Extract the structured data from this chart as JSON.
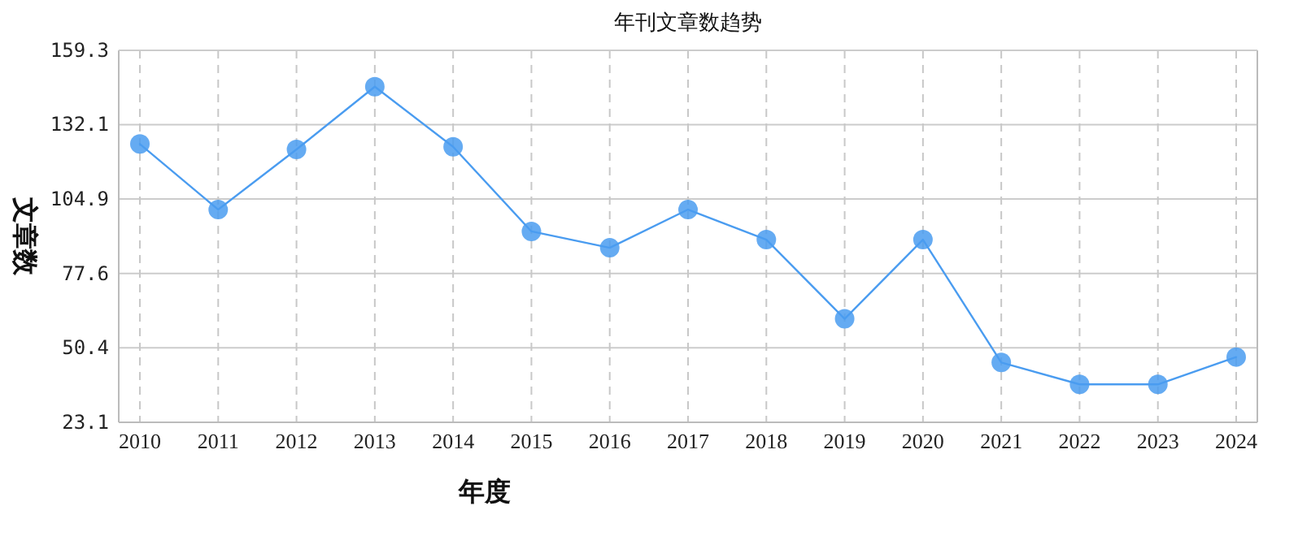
{
  "chart_data": {
    "type": "line",
    "title": "年刊文章数趋势",
    "xlabel": "年度",
    "ylabel": "文章数",
    "categories": [
      "2010",
      "2011",
      "2012",
      "2013",
      "2014",
      "2015",
      "2016",
      "2017",
      "2018",
      "2019",
      "2020",
      "2021",
      "2022",
      "2023",
      "2024"
    ],
    "series": [
      {
        "color": "#4a9cf0",
        "values": [
          125,
          101,
          123,
          146,
          124,
          93,
          87,
          101,
          90,
          61,
          90,
          45,
          37,
          37,
          47
        ]
      }
    ],
    "ylim": [
      23.1,
      159.3
    ],
    "yticks": [
      23.1,
      50.4,
      77.6,
      104.9,
      132.1,
      159.3
    ],
    "grid": true,
    "marker": "circle",
    "line_style": "solid"
  }
}
